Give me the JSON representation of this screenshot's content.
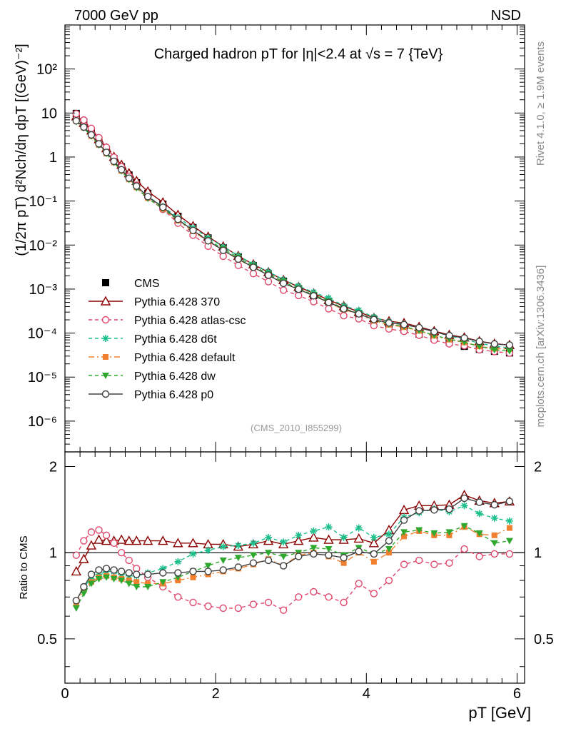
{
  "header": {
    "left": "7000 GeV pp",
    "right": "NSD"
  },
  "side_labels": {
    "rivet": "Rivet 4.1.0, ≥ 1.9M events",
    "mcplots": "mcplots.cern.ch [arXiv:1306.3436]"
  },
  "chart_data": {
    "type": "line",
    "title": "Charged hadron pT for |η|<2.4 at √s = 7 {TeV}",
    "analysis_id": "(CMS_2010_I855299)",
    "xlabel": "pT [GeV]",
    "ylabel": "(1/2π pT) d²Nch/dη dpT [(GeV)⁻²]",
    "ratio_ylabel": "Ratio to CMS",
    "xlim": [
      0,
      6.1
    ],
    "ylim_log": [
      2e-07,
      1000
    ],
    "ratio_ylim": [
      0.35,
      2.25
    ],
    "x_ticks": [
      "0",
      "2",
      "4",
      "6"
    ],
    "y_ticks": [
      "10²",
      "10",
      "1",
      "10⁻¹",
      "10⁻²",
      "10⁻³",
      "10⁻⁴",
      "10⁻⁵",
      "10⁻⁶"
    ],
    "ratio_ticks": [
      "0.5",
      "1",
      "2"
    ],
    "x": [
      0.15,
      0.25,
      0.35,
      0.45,
      0.55,
      0.65,
      0.75,
      0.85,
      0.95,
      1.1,
      1.3,
      1.5,
      1.7,
      1.9,
      2.1,
      2.3,
      2.5,
      2.7,
      2.9,
      3.1,
      3.3,
      3.5,
      3.7,
      3.9,
      4.1,
      4.3,
      4.5,
      4.7,
      4.9,
      5.1,
      5.3,
      5.5,
      5.7,
      5.9
    ],
    "data_values": [
      9.8,
      6.3,
      3.8,
      2.3,
      1.45,
      0.92,
      0.6,
      0.39,
      0.26,
      0.15,
      0.085,
      0.045,
      0.025,
      0.0145,
      0.0087,
      0.0054,
      0.0034,
      0.0022,
      0.0015,
      0.00102,
      0.00071,
      0.00051,
      0.00037,
      0.00027,
      0.000205,
      0.000155,
      0.00012,
      9.5e-05,
      7.6e-05,
      6.2e-05,
      5e-05,
      4.3e-05,
      3.85e-05,
      3.55e-05
    ],
    "series": [
      {
        "name": "Pythia 6.428 370",
        "color": "#8b0000",
        "marker": "triangle-open",
        "dash": "",
        "ratio": [
          0.86,
          0.95,
          1.06,
          1.11,
          1.1,
          1.1,
          1.11,
          1.1,
          1.1,
          1.1,
          1.1,
          1.08,
          1.08,
          1.07,
          1.07,
          1.05,
          1.07,
          1.1,
          1.07,
          1.1,
          1.13,
          1.11,
          1.11,
          1.12,
          1.08,
          1.2,
          1.41,
          1.46,
          1.46,
          1.47,
          1.59,
          1.52,
          1.49,
          1.51
        ]
      },
      {
        "name": "Pythia 6.428 atlas-csc",
        "color": "#e0476b",
        "marker": "circle-open",
        "dash": "5,4",
        "ratio": [
          0.98,
          1.1,
          1.18,
          1.2,
          1.15,
          1.08,
          1.0,
          0.94,
          0.88,
          0.82,
          0.76,
          0.7,
          0.67,
          0.65,
          0.64,
          0.64,
          0.66,
          0.67,
          0.63,
          0.7,
          0.73,
          0.7,
          0.67,
          0.78,
          0.72,
          0.8,
          0.91,
          0.94,
          0.91,
          0.92,
          1.03,
          0.97,
          0.99,
          0.99
        ]
      },
      {
        "name": "Pythia 6.428 d6t",
        "color": "#1dbf8c",
        "marker": "star",
        "dash": "5,4",
        "ratio": [
          0.68,
          0.76,
          0.81,
          0.84,
          0.86,
          0.86,
          0.84,
          0.83,
          0.83,
          0.85,
          0.88,
          0.93,
          0.99,
          1.02,
          1.05,
          1.06,
          1.08,
          1.13,
          1.09,
          1.15,
          1.19,
          1.23,
          1.13,
          1.22,
          1.13,
          1.16,
          1.33,
          1.38,
          1.42,
          1.39,
          1.46,
          1.37,
          1.32,
          1.29
        ]
      },
      {
        "name": "Pythia 6.428 default",
        "color": "#f08030",
        "marker": "square",
        "dash": "8,4,2,4",
        "ratio": [
          0.67,
          0.74,
          0.79,
          0.82,
          0.83,
          0.82,
          0.81,
          0.8,
          0.79,
          0.78,
          0.78,
          0.8,
          0.82,
          0.84,
          0.86,
          0.88,
          0.91,
          0.95,
          0.9,
          0.98,
          1.0,
          0.97,
          0.92,
          1.0,
          0.93,
          1.0,
          1.14,
          1.19,
          1.15,
          1.15,
          1.23,
          1.16,
          1.15,
          1.22
        ]
      },
      {
        "name": "Pythia 6.428 dw",
        "color": "#2ea82e",
        "marker": "triangle-down",
        "dash": "5,4",
        "ratio": [
          0.64,
          0.72,
          0.78,
          0.81,
          0.82,
          0.81,
          0.8,
          0.78,
          0.76,
          0.76,
          0.79,
          0.82,
          0.86,
          0.9,
          0.94,
          0.96,
          0.98,
          1.0,
          0.97,
          1.0,
          1.04,
          1.03,
          0.98,
          1.04,
          0.99,
          1.03,
          1.18,
          1.2,
          1.17,
          1.18,
          1.24,
          1.17,
          1.08,
          1.1
        ]
      },
      {
        "name": "Pythia 6.428 p0",
        "color": "#404040",
        "marker": "circle-open",
        "dash": "",
        "ratio": [
          0.68,
          0.76,
          0.84,
          0.87,
          0.88,
          0.87,
          0.86,
          0.85,
          0.84,
          0.84,
          0.85,
          0.85,
          0.86,
          0.86,
          0.87,
          0.89,
          0.92,
          0.94,
          0.9,
          0.97,
          0.99,
          0.98,
          0.96,
          1.01,
          0.99,
          1.1,
          1.3,
          1.4,
          1.41,
          1.42,
          1.55,
          1.5,
          1.47,
          1.51
        ]
      }
    ],
    "data_series_name": "CMS",
    "data_color": "#000000"
  }
}
